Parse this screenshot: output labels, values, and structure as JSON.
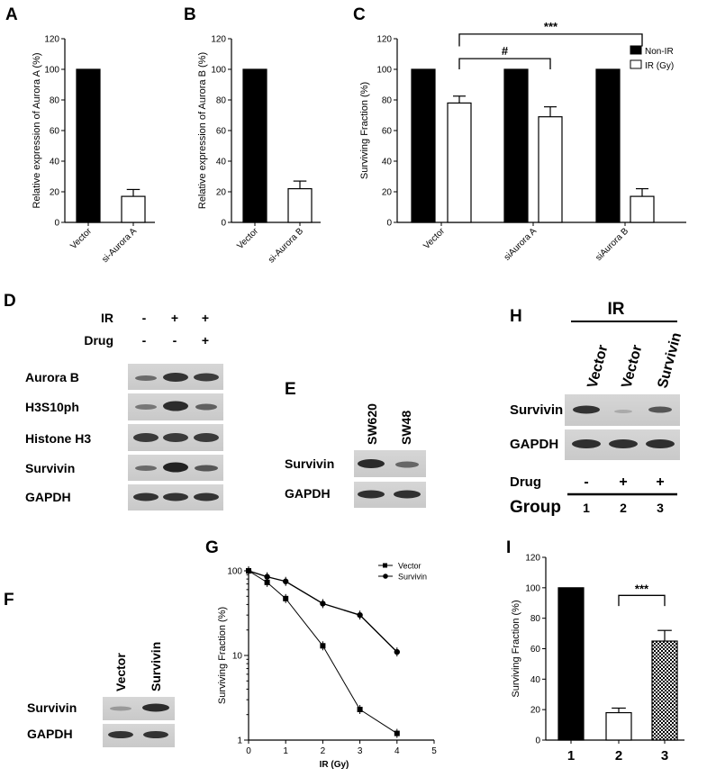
{
  "figure": {
    "panel_letters": [
      "A",
      "B",
      "C",
      "D",
      "E",
      "F",
      "G",
      "H",
      "I"
    ],
    "panel_d": {
      "condition_labels": [
        "IR",
        "Drug"
      ],
      "conditions": [
        [
          "-",
          "+",
          "+"
        ],
        [
          "-",
          "-",
          "+"
        ]
      ],
      "bands": [
        "Aurora B",
        "H3S10ph",
        "Histone H3",
        "Survivin",
        "GAPDH"
      ]
    },
    "panel_e": {
      "lanes": [
        "SW620",
        "SW48"
      ],
      "bands": [
        "Survivin",
        "GAPDH"
      ]
    },
    "panel_f": {
      "lanes": [
        "Vector",
        "Survivin"
      ],
      "bands": [
        "Survivin",
        "GAPDH"
      ]
    },
    "panel_h": {
      "ir_label": "IR",
      "lanes": [
        "Vector",
        "Vector",
        "Survivin"
      ],
      "bands": [
        "Survivin",
        "GAPDH"
      ],
      "drug_label": "Drug",
      "drug": [
        "-",
        "+",
        "+"
      ],
      "group_label": "Group",
      "groups": [
        "1",
        "2",
        "3"
      ]
    }
  },
  "chart_data": [
    {
      "id": "A",
      "type": "bar",
      "categories": [
        "Vector",
        "si-Aurora A"
      ],
      "values": [
        100,
        17
      ],
      "errors": [
        0,
        4.5
      ],
      "fills": [
        "#000000",
        "#ffffff"
      ],
      "ylabel": "Relative expression of Aurora A (%)",
      "ylim": [
        0,
        120
      ],
      "yticks": [
        "0",
        "20",
        "40",
        "60",
        "80",
        "100",
        "120"
      ]
    },
    {
      "id": "B",
      "type": "bar",
      "categories": [
        "Vector",
        "si-Aurora B"
      ],
      "values": [
        100,
        22
      ],
      "errors": [
        0,
        5
      ],
      "fills": [
        "#000000",
        "#ffffff"
      ],
      "ylabel": "Relative expression of Aurora B (%)",
      "ylim": [
        0,
        120
      ],
      "yticks": [
        "0",
        "20",
        "40",
        "60",
        "80",
        "100",
        "120"
      ]
    },
    {
      "id": "C",
      "type": "bar",
      "categories": [
        "Vector",
        "siAurora A",
        "siAurora B"
      ],
      "series": [
        {
          "name": "Non-IR",
          "values": [
            100,
            100,
            100
          ],
          "errors": [
            0,
            0,
            0
          ],
          "fill": "#000000"
        },
        {
          "name": "IR (Gy)",
          "values": [
            78,
            69,
            17
          ],
          "errors": [
            4.5,
            6.5,
            5
          ],
          "fill": "#ffffff"
        }
      ],
      "ylabel": "Surviving Fraction (%)",
      "ylim": [
        0,
        120
      ],
      "yticks": [
        "0",
        "20",
        "40",
        "60",
        "80",
        "100",
        "120"
      ],
      "legend": "top-right",
      "significance": [
        {
          "label": "#",
          "from": "Vector",
          "to": "siAurora A"
        },
        {
          "label": "***",
          "from": "Vector",
          "to": "siAurora B"
        }
      ]
    },
    {
      "id": "G",
      "type": "line",
      "yscale": "log",
      "xlabel": "IR (Gy)",
      "ylabel": "Surviving Fraction (%)",
      "xlim": [
        0,
        5
      ],
      "xticks": [
        "0",
        "1",
        "2",
        "3",
        "4",
        "5"
      ],
      "ylim": [
        1,
        100
      ],
      "yticks": [
        "1",
        "10",
        "100"
      ],
      "legend": "top-right",
      "series": [
        {
          "name": "Vector",
          "marker": "square",
          "x": [
            0,
            0.5,
            1,
            2,
            3,
            4
          ],
          "y": [
            100,
            73,
            47,
            13,
            2.3,
            1.2
          ]
        },
        {
          "name": "Survivin",
          "marker": "circle",
          "x": [
            0,
            0.5,
            1,
            2,
            3,
            4
          ],
          "y": [
            100,
            85,
            75,
            41,
            30,
            11
          ]
        }
      ]
    },
    {
      "id": "I",
      "type": "bar",
      "categories": [
        "1",
        "2",
        "3"
      ],
      "values": [
        100,
        18,
        65
      ],
      "errors": [
        0,
        3,
        7
      ],
      "fills": [
        "#000000",
        "#ffffff",
        "checker"
      ],
      "ylabel": "Surviving Fraction (%)",
      "ylim": [
        0,
        120
      ],
      "yticks": [
        "0",
        "20",
        "40",
        "60",
        "80",
        "100",
        "120"
      ],
      "significance": [
        {
          "label": "***",
          "from": "2",
          "to": "3"
        }
      ]
    }
  ]
}
